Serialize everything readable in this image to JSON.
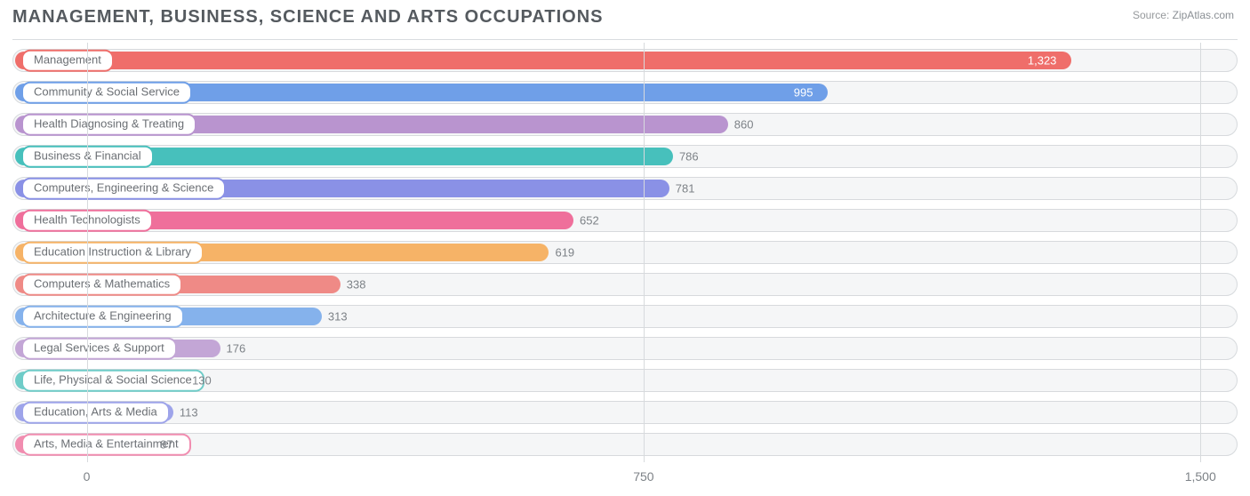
{
  "title": "MANAGEMENT, BUSINESS, SCIENCE AND ARTS OCCUPATIONS",
  "source_label": "Source:",
  "source_value": "ZipAtlas.com",
  "chart": {
    "type": "bar-horizontal",
    "background_color": "#ffffff",
    "track_bg": "#f5f6f7",
    "track_border": "#d7dadd",
    "grid_color": "#d7dadd",
    "title_color": "#555a5f",
    "label_color": "#6b6f74",
    "value_color_outside": "#7d8287",
    "value_color_inside": "#ffffff",
    "title_fontsize": 20,
    "label_fontsize": 13,
    "value_fontsize": 13,
    "axis_fontsize": 14,
    "x_min": -100,
    "x_max": 1550,
    "x_ticks": [
      {
        "value": 0,
        "label": "0"
      },
      {
        "value": 750,
        "label": "750"
      },
      {
        "value": 1500,
        "label": "1,500"
      }
    ],
    "bars": [
      {
        "label": "Management",
        "value": 1323,
        "display": "1,323",
        "color": "#ef6e6a",
        "value_inside": true
      },
      {
        "label": "Community & Social Service",
        "value": 995,
        "display": "995",
        "color": "#6f9fe8",
        "value_inside": true
      },
      {
        "label": "Health Diagnosing & Treating",
        "value": 860,
        "display": "860",
        "color": "#b994cf",
        "value_inside": false
      },
      {
        "label": "Business & Financial",
        "value": 786,
        "display": "786",
        "color": "#47c0bc",
        "value_inside": false
      },
      {
        "label": "Computers, Engineering & Science",
        "value": 781,
        "display": "781",
        "color": "#8a91e6",
        "value_inside": false
      },
      {
        "label": "Health Technologists",
        "value": 652,
        "display": "652",
        "color": "#ef6f9b",
        "value_inside": false
      },
      {
        "label": "Education Instruction & Library",
        "value": 619,
        "display": "619",
        "color": "#f6b367",
        "value_inside": false
      },
      {
        "label": "Computers & Mathematics",
        "value": 338,
        "display": "338",
        "color": "#ef8a86",
        "value_inside": false
      },
      {
        "label": "Architecture & Engineering",
        "value": 313,
        "display": "313",
        "color": "#85b2ec",
        "value_inside": false
      },
      {
        "label": "Legal Services & Support",
        "value": 176,
        "display": "176",
        "color": "#c3a6d6",
        "value_inside": false
      },
      {
        "label": "Life, Physical & Social Science",
        "value": 130,
        "display": "130",
        "color": "#6fccc8",
        "value_inside": false
      },
      {
        "label": "Education, Arts & Media",
        "value": 113,
        "display": "113",
        "color": "#9ea4ea",
        "value_inside": false
      },
      {
        "label": "Arts, Media & Entertainment",
        "value": 87,
        "display": "87",
        "color": "#f18db0",
        "value_inside": false
      }
    ]
  }
}
